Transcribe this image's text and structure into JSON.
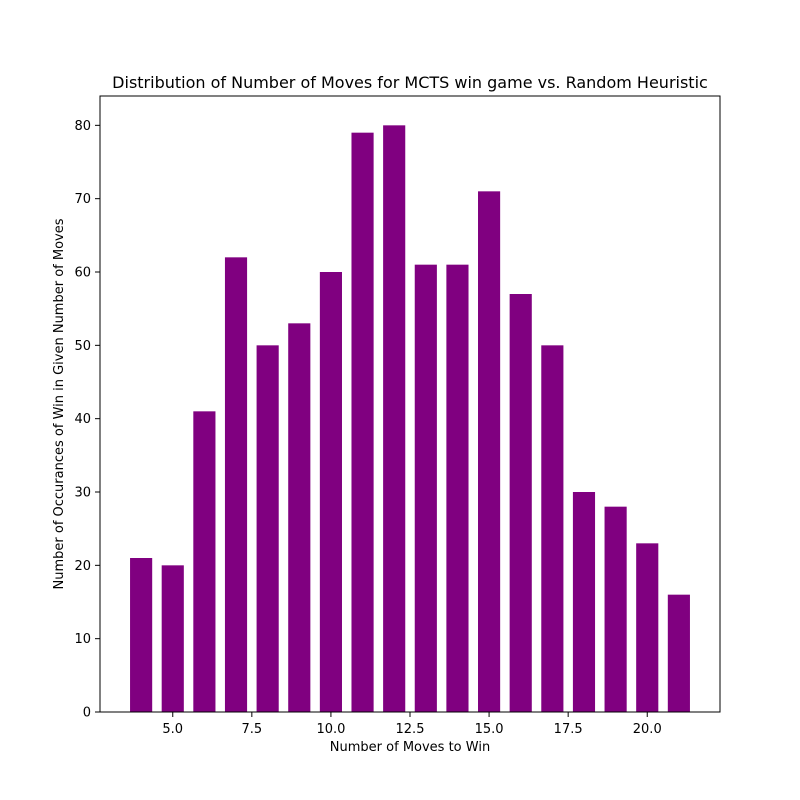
{
  "chart_data": {
    "type": "bar",
    "title": "Distribution of Number of Moves for MCTS win game vs. Random Heuristic",
    "xlabel": "Number of Moves to Win",
    "ylabel": "Number of Occurances of Win in Given Number of Moves",
    "x": [
      4,
      5,
      6,
      7,
      8,
      9,
      10,
      11,
      12,
      13,
      14,
      15,
      16,
      17,
      18,
      19,
      20,
      21
    ],
    "values": [
      21,
      20,
      41,
      62,
      50,
      53,
      60,
      79,
      80,
      61,
      61,
      71,
      57,
      50,
      30,
      28,
      23,
      16
    ],
    "bar_width": 0.7,
    "xlim": [
      2.7,
      22.3
    ],
    "ylim": [
      0,
      84
    ],
    "xticks": [
      5.0,
      7.5,
      10.0,
      12.5,
      15.0,
      17.5,
      20.0
    ],
    "xtick_labels": [
      "5.0",
      "7.5",
      "10.0",
      "12.5",
      "15.0",
      "17.5",
      "20.0"
    ],
    "yticks": [
      0,
      10,
      20,
      30,
      40,
      50,
      60,
      70,
      80
    ],
    "ytick_labels": [
      "0",
      "10",
      "20",
      "30",
      "40",
      "50",
      "60",
      "70",
      "80"
    ],
    "grid": false,
    "bar_color": "#800080"
  }
}
